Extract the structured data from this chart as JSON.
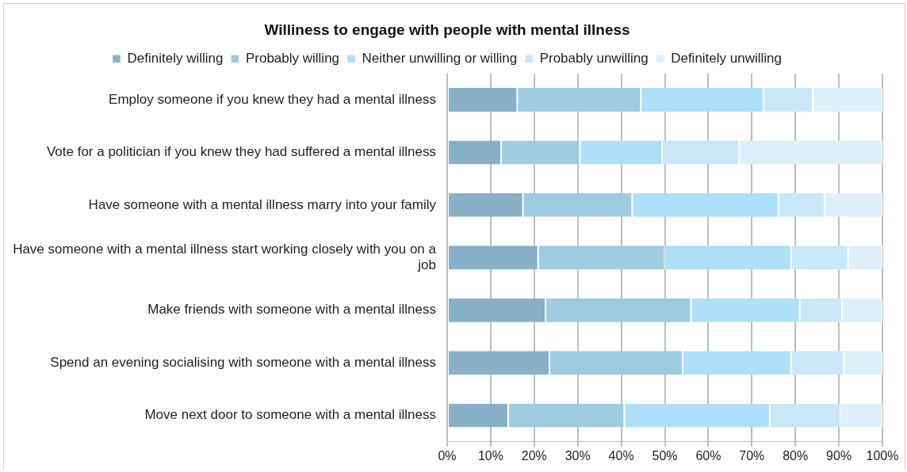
{
  "chart_data": {
    "type": "bar",
    "orientation": "horizontal",
    "stacked": true,
    "title": "Williness to engage with people with mental illness",
    "categories": [
      "Employ someone if you knew they had a mental illness",
      "Vote for a politician if you knew they had suffered a mental illness",
      "Have someone with a mental illness marry into your family",
      "Have someone with a mental illness start working closely with you on a job",
      "Make friends with someone with a mental illness",
      "Spend an evening socialising with someone with a mental illness",
      "Move next door to someone with a mental illness"
    ],
    "series": [
      {
        "name": "Definitely willing",
        "color": "#88b0c8",
        "values": [
          16.1,
          12.4,
          17.4,
          20.9,
          22.6,
          23.5,
          14.0
        ]
      },
      {
        "name": "Probably willing",
        "color": "#9ecbe2",
        "values": [
          28.4,
          18.1,
          25.1,
          29.1,
          33.4,
          30.6,
          26.7
        ]
      },
      {
        "name": "Neither unwilling or willing",
        "color": "#aee0fa",
        "values": [
          28.2,
          18.9,
          33.6,
          29.0,
          25.0,
          24.9,
          33.4
        ]
      },
      {
        "name": "Probably unwilling",
        "color": "#c8e8fa",
        "values": [
          11.3,
          17.7,
          10.6,
          13.1,
          9.7,
          12.1,
          16.0
        ]
      },
      {
        "name": "Definitely unwilling",
        "color": "#dcf0fc",
        "values": [
          16.0,
          32.9,
          13.3,
          7.9,
          9.3,
          8.9,
          9.9
        ]
      }
    ],
    "xlim": [
      0,
      100
    ],
    "xticks": [
      {
        "value": 0,
        "label": "0%"
      },
      {
        "value": 10,
        "label": "10%"
      },
      {
        "value": 20,
        "label": "20%"
      },
      {
        "value": 30,
        "label": "30%"
      },
      {
        "value": 40,
        "label": "40%"
      },
      {
        "value": 50,
        "label": "50%"
      },
      {
        "value": 60,
        "label": "60%"
      },
      {
        "value": 70,
        "label": "70%"
      },
      {
        "value": 80,
        "label": "80%"
      },
      {
        "value": 90,
        "label": "90%"
      },
      {
        "value": 100,
        "label": "100%"
      }
    ],
    "grid": "x",
    "legend": "top"
  }
}
